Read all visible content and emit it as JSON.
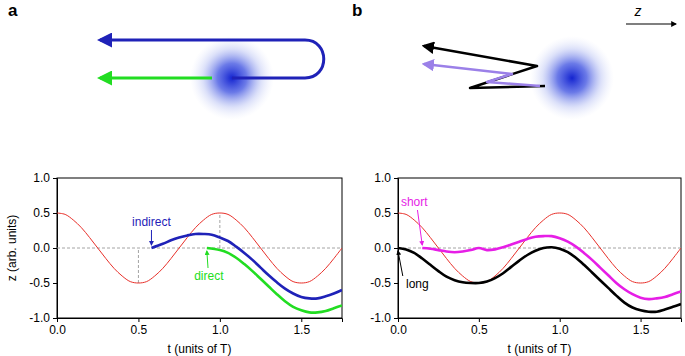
{
  "chart_data": [
    {
      "type": "line",
      "panel": "a",
      "x_label": "t (units of T)",
      "y_label": "z (arb. units)",
      "xlim": [
        0,
        1.75
      ],
      "ylim": [
        -1,
        1
      ],
      "xticks": [
        {
          "value": 0,
          "label": "0.0"
        },
        {
          "value": 0.5,
          "label": "0.5"
        },
        {
          "value": 1,
          "label": "1.0"
        },
        {
          "value": 1.5,
          "label": "1.5"
        }
      ],
      "yticks": [
        {
          "value": -1,
          "label": "-1.0"
        },
        {
          "value": -0.5,
          "label": "-0.5"
        },
        {
          "value": 0,
          "label": "0.0"
        },
        {
          "value": 0.5,
          "label": "0.5"
        },
        {
          "value": 1,
          "label": "1.0"
        }
      ],
      "series": [
        {
          "color": "#9a9a9a",
          "line_style": "dashed",
          "x": [
            0,
            1.75
          ],
          "values": [
            0,
            0
          ]
        },
        {
          "color": "#9a9a9a",
          "line_style": "dashed",
          "x": [
            0.5,
            0.5
          ],
          "values": [
            -0.5,
            0
          ]
        },
        {
          "color": "#9a9a9a",
          "line_style": "dashed",
          "x": [
            1,
            1
          ],
          "values": [
            0,
            0.5
          ]
        },
        {
          "color": "#e8302a",
          "line_style": "solid",
          "x": [
            0,
            0.05,
            0.1,
            0.15,
            0.2,
            0.25,
            0.3,
            0.35,
            0.4,
            0.45,
            0.5,
            0.55,
            0.6,
            0.65,
            0.7,
            0.75,
            0.8,
            0.85,
            0.9,
            0.95,
            1,
            1.05,
            1.1,
            1.15,
            1.2,
            1.25,
            1.3,
            1.35,
            1.4,
            1.45,
            1.5,
            1.55,
            1.6,
            1.65,
            1.7,
            1.75
          ],
          "values": [
            0.5,
            0.48,
            0.4,
            0.29,
            0.15,
            0,
            -0.15,
            -0.29,
            -0.4,
            -0.48,
            -0.5,
            -0.48,
            -0.4,
            -0.29,
            -0.15,
            0,
            0.15,
            0.29,
            0.4,
            0.48,
            0.5,
            0.48,
            0.4,
            0.29,
            0.15,
            0,
            -0.15,
            -0.29,
            -0.4,
            -0.48,
            -0.5,
            -0.48,
            -0.4,
            -0.29,
            -0.15,
            0
          ]
        },
        {
          "name": "indirect",
          "color": "#1f22b8",
          "line_style": "solid",
          "x": [
            0.58,
            0.65,
            0.7,
            0.75,
            0.8,
            0.85,
            0.9,
            0.95,
            1,
            1.05,
            1.1,
            1.15,
            1.2,
            1.25,
            1.3,
            1.35,
            1.4,
            1.45,
            1.5,
            1.55,
            1.6,
            1.65,
            1.7,
            1.75
          ],
          "values": [
            0,
            0.06,
            0.11,
            0.15,
            0.18,
            0.2,
            0.2,
            0.19,
            0.15,
            0.1,
            0.02,
            -0.07,
            -0.17,
            -0.28,
            -0.39,
            -0.49,
            -0.58,
            -0.65,
            -0.7,
            -0.72,
            -0.72,
            -0.69,
            -0.65,
            -0.6
          ]
        },
        {
          "name": "direct",
          "color": "#22dd22",
          "line_style": "solid",
          "x": [
            0.92,
            1,
            1.05,
            1.1,
            1.15,
            1.2,
            1.25,
            1.3,
            1.35,
            1.4,
            1.45,
            1.5,
            1.55,
            1.6,
            1.65,
            1.7,
            1.75
          ],
          "values": [
            0,
            -0.03,
            -0.07,
            -0.14,
            -0.23,
            -0.33,
            -0.44,
            -0.55,
            -0.66,
            -0.76,
            -0.84,
            -0.89,
            -0.92,
            -0.92,
            -0.9,
            -0.86,
            -0.82
          ]
        }
      ]
    },
    {
      "type": "line",
      "panel": "b",
      "x_label": "t (units of T)",
      "schematic_label": "z",
      "xlim": [
        0,
        1.75
      ],
      "ylim": [
        -1,
        1
      ],
      "xticks": [
        {
          "value": 0,
          "label": "0.0"
        },
        {
          "value": 0.5,
          "label": "0.5"
        },
        {
          "value": 1,
          "label": "1.0"
        },
        {
          "value": 1.5,
          "label": "1.5"
        }
      ],
      "yticks": [
        {
          "value": -1,
          "label": "-1.0"
        },
        {
          "value": -0.5,
          "label": "-0.5"
        },
        {
          "value": 0,
          "label": "0.0"
        },
        {
          "value": 0.5,
          "label": "0.5"
        },
        {
          "value": 1,
          "label": "1.0"
        }
      ],
      "series": [
        {
          "color": "#9a9a9a",
          "line_style": "dashed",
          "x": [
            0,
            1.75
          ],
          "values": [
            0,
            0
          ]
        },
        {
          "color": "#e8302a",
          "line_style": "solid",
          "x": [
            0,
            0.05,
            0.1,
            0.15,
            0.2,
            0.25,
            0.3,
            0.35,
            0.4,
            0.45,
            0.5,
            0.55,
            0.6,
            0.65,
            0.7,
            0.75,
            0.8,
            0.85,
            0.9,
            0.95,
            1,
            1.05,
            1.1,
            1.15,
            1.2,
            1.25,
            1.3,
            1.35,
            1.4,
            1.45,
            1.5,
            1.55,
            1.6,
            1.65,
            1.7,
            1.75
          ],
          "values": [
            0.5,
            0.48,
            0.4,
            0.29,
            0.15,
            0,
            -0.15,
            -0.29,
            -0.4,
            -0.48,
            -0.5,
            -0.48,
            -0.4,
            -0.29,
            -0.15,
            0,
            0.15,
            0.29,
            0.4,
            0.48,
            0.5,
            0.48,
            0.4,
            0.29,
            0.15,
            0,
            -0.15,
            -0.29,
            -0.4,
            -0.48,
            -0.5,
            -0.48,
            -0.4,
            -0.29,
            -0.15,
            0
          ]
        },
        {
          "name": "short",
          "color": "#e61ee6",
          "line_style": "solid",
          "x": [
            0.15,
            0.2,
            0.25,
            0.3,
            0.35,
            0.4,
            0.45,
            0.5,
            0.55,
            0.6,
            0.65,
            0.7,
            0.75,
            0.8,
            0.85,
            0.9,
            0.95,
            1,
            1.05,
            1.1,
            1.15,
            1.2,
            1.25,
            1.3,
            1.35,
            1.4,
            1.45,
            1.5,
            1.55,
            1.6,
            1.65,
            1.7,
            1.75
          ],
          "values": [
            0,
            -0.01,
            -0.03,
            -0.05,
            -0.06,
            -0.05,
            -0.03,
            0,
            -0.03,
            -0.02,
            0.01,
            0.05,
            0.09,
            0.13,
            0.16,
            0.17,
            0.17,
            0.14,
            0.09,
            0.02,
            -0.07,
            -0.17,
            -0.28,
            -0.39,
            -0.5,
            -0.59,
            -0.66,
            -0.71,
            -0.73,
            -0.72,
            -0.7,
            -0.66,
            -0.62
          ]
        },
        {
          "name": "long",
          "color": "#000000",
          "line_style": "solid",
          "x": [
            0,
            0.05,
            0.1,
            0.15,
            0.2,
            0.25,
            0.3,
            0.35,
            0.4,
            0.45,
            0.5,
            0.55,
            0.6,
            0.65,
            0.7,
            0.75,
            0.8,
            0.85,
            0.9,
            0.95,
            1,
            1.05,
            1.1,
            1.15,
            1.2,
            1.25,
            1.3,
            1.35,
            1.4,
            1.45,
            1.5,
            1.55,
            1.6,
            1.65,
            1.7,
            1.75
          ],
          "values": [
            0,
            -0.02,
            -0.07,
            -0.15,
            -0.24,
            -0.33,
            -0.41,
            -0.46,
            -0.49,
            -0.5,
            -0.5,
            -0.48,
            -0.43,
            -0.36,
            -0.27,
            -0.18,
            -0.1,
            -0.04,
            0,
            0.01,
            -0.01,
            -0.06,
            -0.14,
            -0.24,
            -0.35,
            -0.46,
            -0.57,
            -0.68,
            -0.78,
            -0.85,
            -0.89,
            -0.91,
            -0.91,
            -0.88,
            -0.84,
            -0.8
          ]
        }
      ]
    }
  ]
}
